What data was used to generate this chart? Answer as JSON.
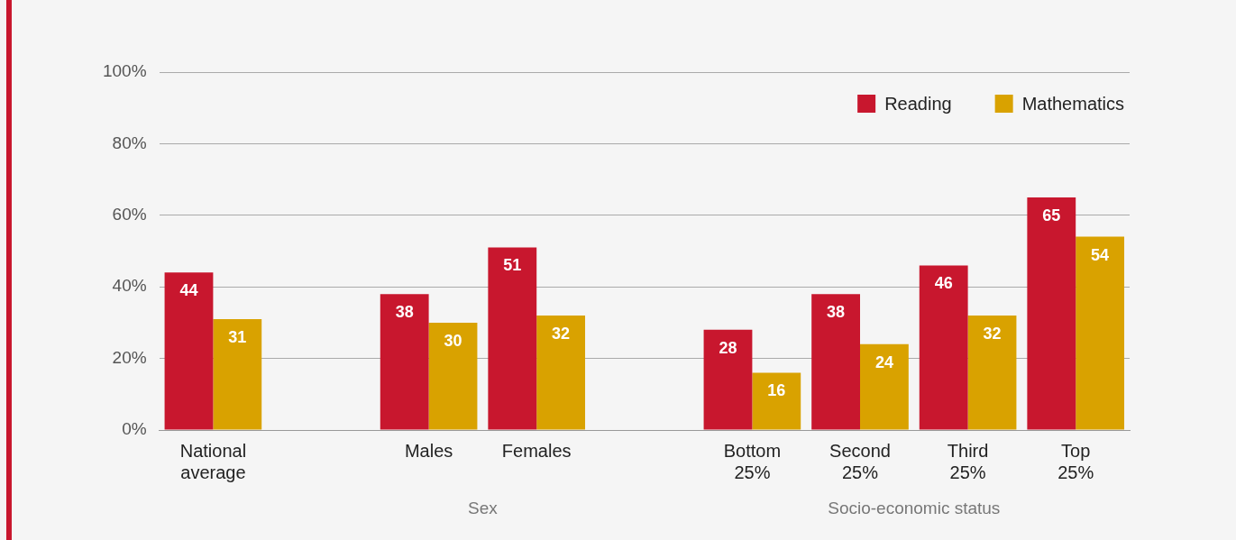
{
  "chart_data": {
    "type": "bar",
    "categories": [
      "National average",
      null,
      "Males",
      "Females",
      null,
      "Bottom 25%",
      "Second 25%",
      "Third 25%",
      "Top 25%"
    ],
    "series": [
      {
        "name": "Reading",
        "color": "#c8172e",
        "values": [
          44,
          null,
          38,
          51,
          null,
          28,
          38,
          46,
          65
        ]
      },
      {
        "name": "Mathematics",
        "color": "#d9a200",
        "values": [
          31,
          null,
          30,
          32,
          null,
          16,
          24,
          32,
          54
        ]
      }
    ],
    "ylim": [
      0,
      100
    ],
    "yticks": [
      {
        "value": 0,
        "label": "0%"
      },
      {
        "value": 20,
        "label": "20%"
      },
      {
        "value": 40,
        "label": "40%"
      },
      {
        "value": 60,
        "label": "60%"
      },
      {
        "value": 80,
        "label": "80%"
      },
      {
        "value": 100,
        "label": "100%"
      }
    ],
    "grid": "y",
    "legend": "top right",
    "data_labels": true,
    "annotations": [
      "Sex",
      "Socio-economic status"
    ]
  }
}
